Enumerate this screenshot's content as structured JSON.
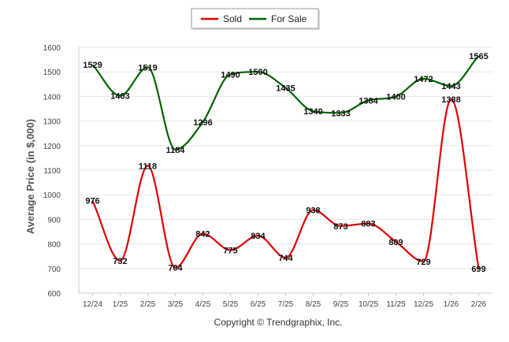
{
  "chart_data": {
    "type": "line",
    "title": "",
    "ylabel": "Average Price (in $,000)",
    "xlabel": "",
    "categories": [
      "12/24",
      "1/25",
      "2/25",
      "3/25",
      "4/25",
      "5/25",
      "6/25",
      "7/25",
      "8/25",
      "9/25",
      "10/25",
      "11/25",
      "12/25",
      "1/26",
      "2/26"
    ],
    "ylim": [
      600,
      1600
    ],
    "yticks": [
      600,
      700,
      800,
      900,
      1000,
      1100,
      1200,
      1300,
      1400,
      1500,
      1600
    ],
    "grid": true,
    "legend_position": "top-center",
    "series": [
      {
        "name": "Sold",
        "color": "#e00000",
        "values": [
          976,
          732,
          1118,
          704,
          842,
          775,
          834,
          744,
          938,
          873,
          883,
          809,
          729,
          1388,
          699
        ]
      },
      {
        "name": "For Sale",
        "color": "#006400",
        "values": [
          1529,
          1403,
          1519,
          1184,
          1296,
          1490,
          1500,
          1435,
          1340,
          1333,
          1384,
          1400,
          1472,
          1443,
          1565
        ]
      }
    ]
  },
  "footer": {
    "copyright": "Copyright © Trendgraphix, Inc."
  }
}
